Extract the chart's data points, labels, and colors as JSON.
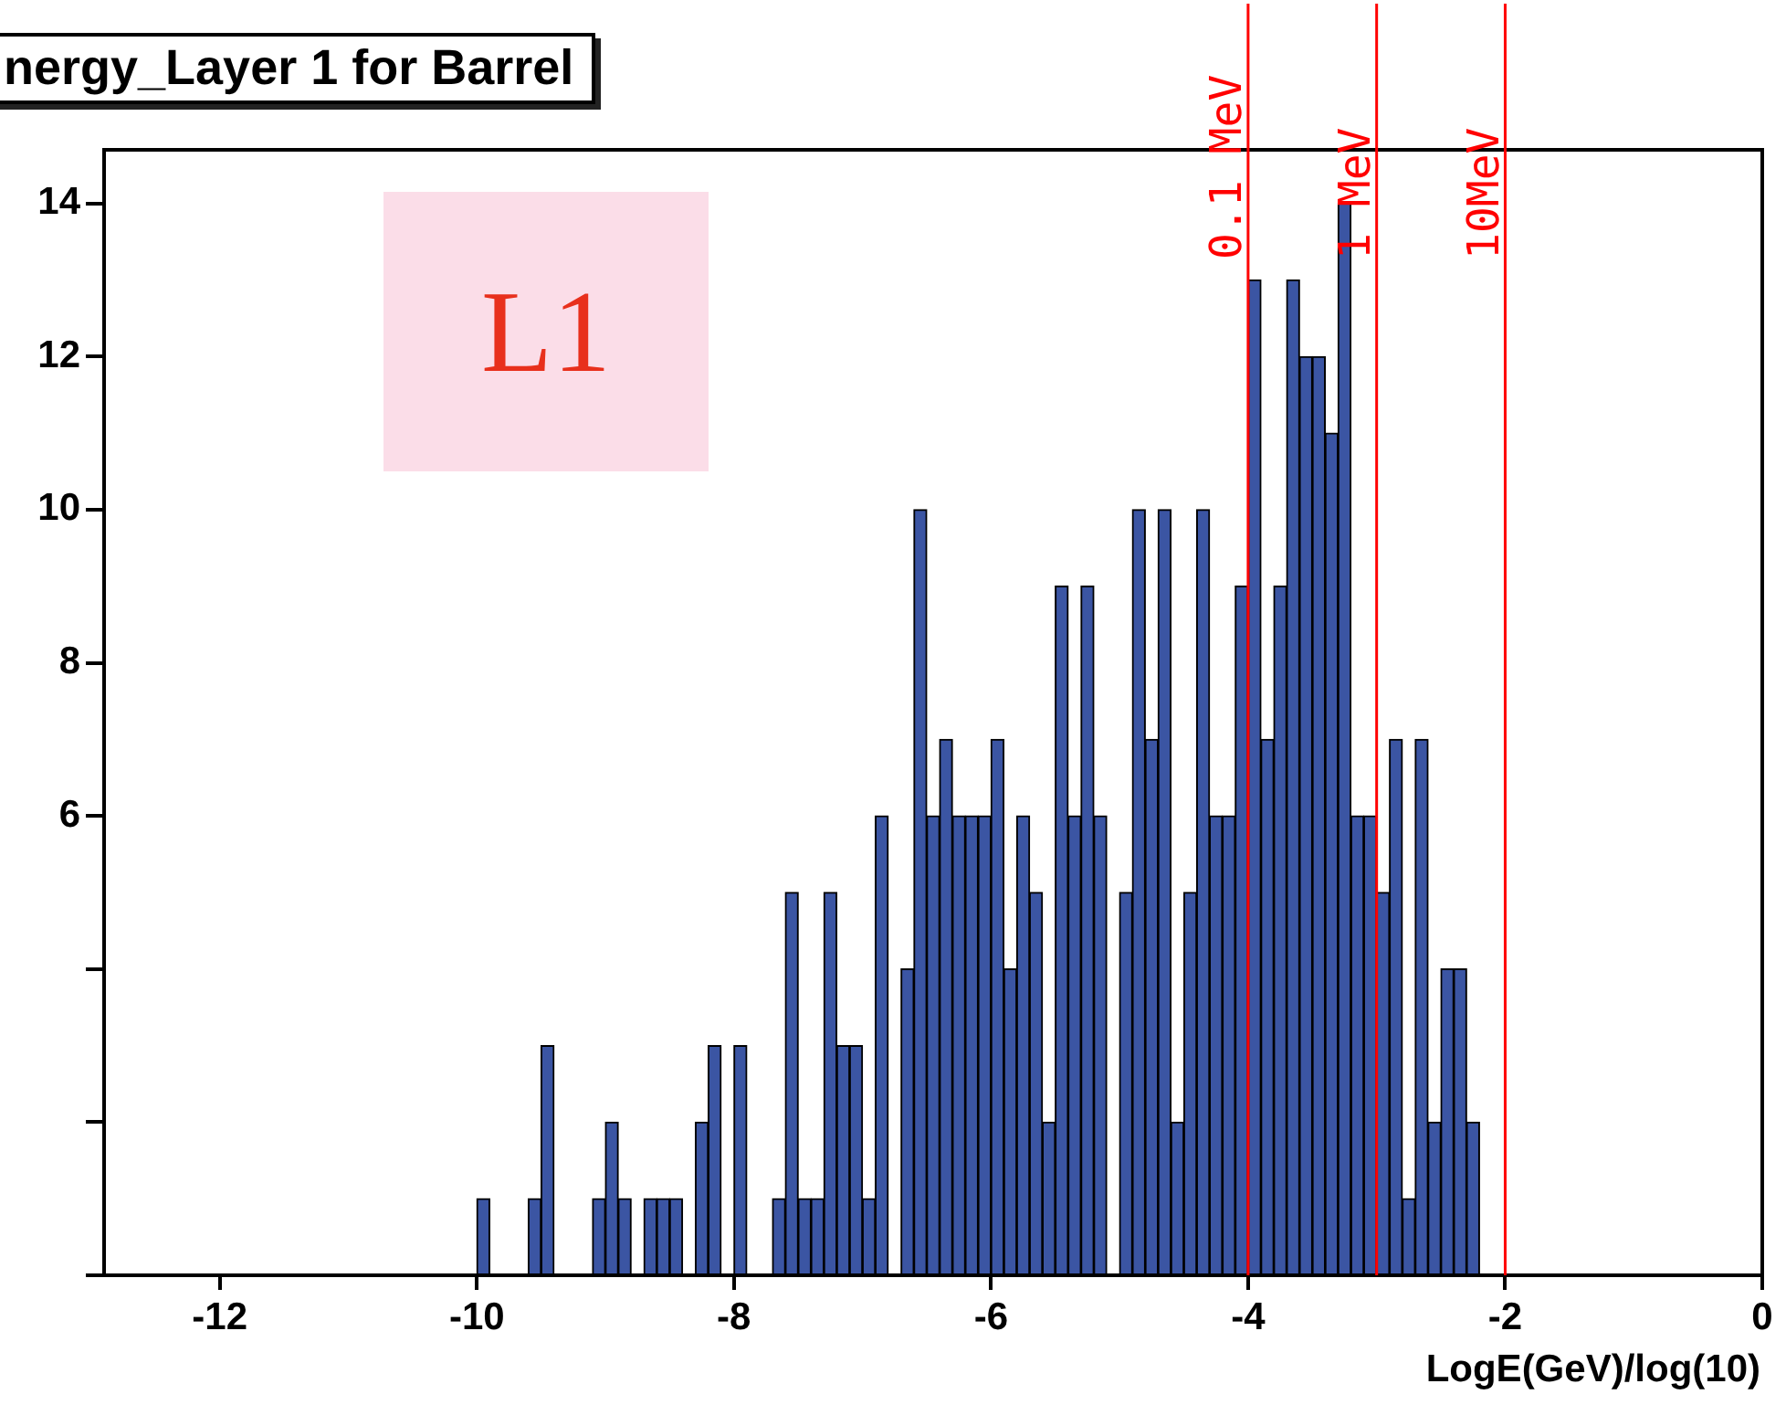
{
  "chart_data": {
    "type": "histogram",
    "title": "nergy_Layer 1 for Barrel",
    "xlabel": "LogE(GeV)/log(10)",
    "bins": [
      -10,
      -9.9,
      -9.8,
      -9.7,
      -9.6,
      -9.5,
      -9.4,
      -9.3,
      -9.2,
      -9.1,
      -9,
      -8.9,
      -8.8,
      -8.7,
      -8.6,
      -8.5,
      -8.4,
      -8.3,
      -8.2,
      -8.1,
      -8,
      -7.9,
      -7.8,
      -7.7,
      -7.6,
      -7.5,
      -7.4,
      -7.3,
      -7.2,
      -7.1,
      -7,
      -6.9,
      -6.8,
      -6.7,
      -6.6,
      -6.5,
      -6.4,
      -6.3,
      -6.2,
      -6.1,
      -6,
      -5.9,
      -5.8,
      -5.7,
      -5.6,
      -5.5,
      -5.4,
      -5.3,
      -5.2,
      -5.1,
      -5,
      -4.9,
      -4.8,
      -4.7,
      -4.6,
      -4.5,
      -4.4,
      -4.3,
      -4.2,
      -4.1,
      -4,
      -3.9,
      -3.8,
      -3.7,
      -3.6,
      -3.5,
      -3.4,
      -3.3,
      -3.2,
      -3.1,
      -3,
      -2.9,
      -2.8,
      -2.7,
      -2.6,
      -2.5,
      -2.4,
      -2.3,
      -2.2
    ],
    "values": [
      1,
      0,
      0,
      0,
      1,
      3,
      0,
      0,
      0,
      1,
      2,
      1,
      0,
      1,
      1,
      1,
      0,
      2,
      3,
      0,
      3,
      0,
      0,
      1,
      5,
      1,
      1,
      5,
      3,
      3,
      1,
      6,
      0,
      4,
      10,
      6,
      7,
      6,
      6,
      6,
      7,
      4,
      6,
      5,
      2,
      9,
      6,
      9,
      6,
      0,
      5,
      10,
      7,
      10,
      2,
      5,
      10,
      6,
      6,
      9,
      13,
      7,
      9,
      13,
      12,
      12,
      11,
      14,
      6,
      6,
      5,
      7,
      1,
      7,
      2,
      4,
      4,
      2
    ],
    "color": "#3b55a3",
    "xlim": [
      -12.9,
      0
    ],
    "xticks": [
      -12,
      -10,
      -8,
      -6,
      -4,
      -2,
      0
    ],
    "ylim": [
      0,
      14.7
    ],
    "yticks": [
      {
        "value": 0,
        "label": null
      },
      {
        "value": 2,
        "label": null
      },
      {
        "value": 4,
        "label": null
      },
      6,
      8,
      10,
      12,
      14
    ],
    "ref_lines": [
      {
        "axis": "x",
        "value": -4,
        "label": "0.1 MeV",
        "color": "#ff0000"
      },
      {
        "axis": "x",
        "value": -3,
        "label": "1 MeV",
        "color": "#ff0000"
      },
      {
        "axis": "x",
        "value": -2,
        "label": "10MeV",
        "color": "#ff0000"
      }
    ],
    "annotations": [
      "L1"
    ]
  }
}
